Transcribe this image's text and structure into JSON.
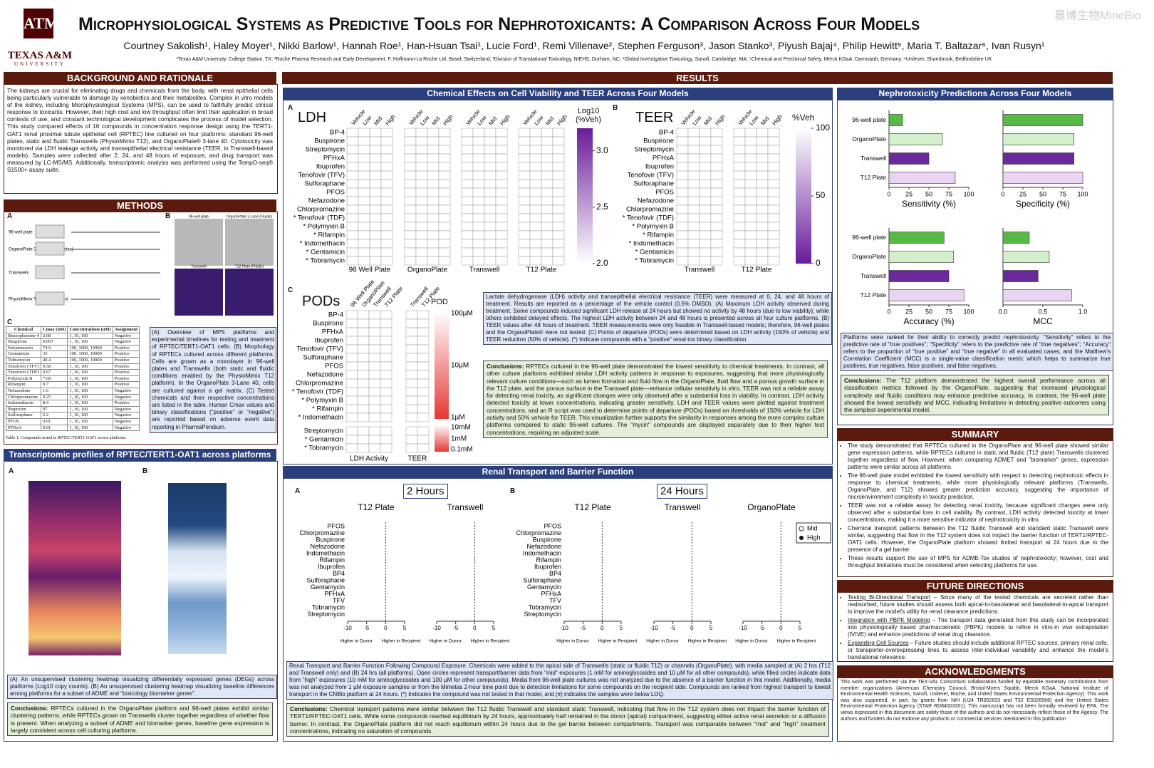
{
  "header": {
    "title": "Microphysiological Systems as Predictive Tools for Nephrotoxicants: A Comparison Across Four Models",
    "authors": "Courtney Sakolish¹, Haley Moyer¹, Nikki Barlow¹, Hannah Roe¹, Han-Hsuan Tsai¹, Lucie Ford¹, Remi Villenave², Stephen Ferguson³, Jason Stanko³, Piyush Bajaj⁴, Philip Hewitt⁵, Maria T. Baltazar⁶, Ivan Rusyn¹",
    "affiliations": "¹Texas A&M University, College Station, TX; ²Roche Pharma Research and Early Development, F. Hoffmann-La Roche Ltd, Basel, Switzerland; ³Division of Translational Toxicology, NIEHS, Durham, NC; ⁴Global Investigative Toxicology, Sanofi, Cambridge, MA; ⁵Chemical and Preclinical Safety, Merck KGaA, Darmstadt, Germany; ⁶Unilever, Sharnbrook, Bedfordshire UK",
    "logo": "TEXAS A&M",
    "logo_sub": "UNIVERSITY",
    "watermark": "暴博生物MineBio"
  },
  "background": {
    "heading": "BACKGROUND AND RATIONALE",
    "text": "The kidneys are crucial for eliminating drugs and chemicals from the body, with renal epithelial cells being particularly vulnerable to damage by xenobiotics and their metabolites. Complex in vitro models of the kidney, including Microphysiological Systems (MPS), can be used to faithfully predict clinical response to toxicants. However, their high cost and low throughput often limit their application in broad contexts of use, and constant technological development complicates the process of model selection. This study compared effects of 16 compounds in concentration response design using the TERT1-OAT1 renal proximal tubule epithelial cell (RPTEC) line cultured on four platforms: standard 96-well plates, static and fluidic Transwells (PhysioMimix T12), and OrganoPlate® 3-lane 40. Cytotoxicity was monitored via LDH leakage activity and transepithelial electrical resistance (TEER, in Transwell-based models). Samples were collected after 2, 24, and 48 hours of exposure, and drug transport was measured by LC-MS/MS. Additionally, transcriptomic analysis was performed using the TempO-seq® S1500+ assay suite."
  },
  "methods": {
    "heading": "METHODS",
    "panel_a": "A",
    "panel_b": "B",
    "panel_c": "C",
    "platforms": [
      "96-well plate",
      "OrganoPlate 3-Lane 40 (Mimetas)",
      "Transwells",
      "PhysioMimix T12 Plate (CNBio)"
    ],
    "images": [
      "96-well plate",
      "OrganoPlate 3-Lane (Fluidic)",
      "Transwell",
      "T12 Plate (Fluidic)"
    ],
    "caption": "(A) Overview of MPS platforms and experimental timelines for testing and treatment of RPTEC/TERT1-OAT1 cells. (B) Morphology of RPTECs cultured across different platforms. Cells are grown as a monolayer in 96-well plates and Transwells (both static and fluidic conditions enabled by the PhysioMimix T12 platform). In the OrganoPlate 3-Lane 40, cells are cultured against a gel matrix. (C) Tested chemicals and their respective concentrations are listed in the table. Human Cmax values and binary classifications (\"positive\" or \"negative\") are reported based on adverse event data reporting in PharmaPendium.",
    "table": {
      "columns": [
        "Chemical",
        "Cmax (uM)",
        "Concentrations (uM)",
        "Assignment"
      ],
      "rows": [
        [
          "Benzophenone-4",
          "2.08",
          "1, 10, 100",
          "Negative"
        ],
        [
          "Buspirone",
          "0.007",
          "1, 10, 100",
          "Negative"
        ],
        [
          "Streptomycin",
          "74.9",
          "100, 1000, 10000",
          "Positive"
        ],
        [
          "Gentamicin",
          "33",
          "100, 1000, 10000",
          "Positive"
        ],
        [
          "Tobramycin",
          "40.4",
          "100, 1000, 10000",
          "Positive"
        ],
        [
          "Tenofovir (TFV)",
          "0.58",
          "1, 10, 100",
          "Positive"
        ],
        [
          "Tenofovir (TDF)",
          "0.67",
          "1, 10, 100",
          "Positive"
        ],
        [
          "Polymyxin B",
          "7.68",
          "1, 10, 100",
          "Positive"
        ],
        [
          "Rifampin",
          "9.7",
          "1, 10, 100",
          "Positive"
        ],
        [
          "Nefazodone",
          "1.6",
          "1, 10, 100",
          "Negative"
        ],
        [
          "Chlorpromazine",
          "0.25",
          "1, 10, 100",
          "Negative"
        ],
        [
          "Indomethacin",
          "8.4",
          "1, 10, 100",
          "Positive"
        ],
        [
          "Ibuprofen",
          "97",
          "1, 10, 100",
          "Negative"
        ],
        [
          "Sulforaphane",
          "2.2",
          "1, 10, 100",
          "Negative"
        ],
        [
          "PFOS",
          "0.01",
          "1, 10, 100",
          "Negative"
        ],
        [
          "PFHxA",
          "0.01",
          "1, 10, 100",
          "Negative"
        ]
      ],
      "caption": "Table 1. Compounds tested in RPTEC/TERT1-OAT1 across platforms"
    }
  },
  "transcriptomics": {
    "heading": "Transcriptomic profiles of RPTEC/TERT1-OAT1 across platforms",
    "panel_a": "A",
    "panel_b": "B",
    "caption": "(A) An unsupervised clustering heatmap visualizing differentially expressed genes (DEGs) across platforms (Log10 copy counts). (B) An unsupervised clustering heatmap visualizing baseline differences among platforms for a subset of ADME and \"toxicology biomarker genes\".",
    "label": "Conclusions:",
    "conclusions": "RPTECs cultured in the OrganoPlate platform and 96-well plates exhibit similar clustering patterns, while RPTECs grown on Transwells cluster together regardless of whether flow is present. When analyzing a subset of ADME and biomarker genes, baseline gene expression is largely consistent across cell culturing platforms."
  },
  "results": {
    "heading": "RESULTS",
    "chem_heading": "Chemical Effects on Cell Viability and TEER Across Four Models",
    "panel_a": "A",
    "panel_b": "B",
    "panel_c": "C",
    "ldh": "LDH",
    "teer": "TEER",
    "pods": "PODs",
    "conditions": [
      "Vehicle",
      "Low",
      "Mid",
      "High"
    ],
    "compounds": [
      "BP-4",
      "Buspirone",
      "Streptomycin",
      "PFHxA",
      "Ibuprofen",
      "Tenofovir (TFV)",
      "Sulforaphane",
      "PFOS",
      "Nefazodone",
      "Chlorpromazine",
      "* Tenofovir (TDF)",
      "* Polymyxin B",
      "* Rifampin",
      "* Indomethacin",
      "* Gentamicin",
      "* Tobramycin"
    ],
    "ldh_platforms": [
      "96 Well Plate",
      "OrganoPlate",
      "Transwell",
      "T12 Plate"
    ],
    "teer_platforms": [
      "Transwell",
      "T12 Plate"
    ],
    "ldh_scale_title": "Log10 (%Veh)",
    "ldh_scale": [
      {
        "value": 3,
        "label": "3.0"
      },
      2.5,
      {
        "value": 2,
        "label": "2.0"
      }
    ],
    "teer_scale_title": "%Veh",
    "teer_scale": [
      100,
      50,
      0
    ],
    "pod_compounds": [
      "BP-4",
      "Buspirone",
      "PFHxA",
      "Ibuprofen",
      "Tenofovir (TFV)",
      "Sulforaphane",
      "PFOS",
      "Nefazodone",
      "Chlorpromazine",
      "* Tenofovir (TDF)",
      "* Polymyxin B",
      "* Rifampin",
      "* Indomethacin"
    ],
    "pod_compounds2": [
      "Streptomycin",
      "* Gentamicin",
      "* Tobramycin"
    ],
    "pod_cols": [
      "96 Well Plate",
      "OrganoPlate",
      "Transwell",
      "T12 Plate"
    ],
    "pod_teer_cols": [
      "Transwell",
      "T12 Plate"
    ],
    "pod_groups": [
      "LDH Activity",
      "TEER"
    ],
    "pod_scale_title": "POD",
    "pod_scale": [
      "100µM",
      "10µM",
      "1µM"
    ],
    "pod_scale2": [
      "10mM",
      "1mM",
      "0.1mM"
    ],
    "chem_caption": "Lactate dehydrogenase (LDH) activity and transepithelial electrical resistance (TEER) were measured at 0, 24, and 48 hours of treatment. Results are reported as a percentage of the vehicle control (0.5% DMSO). (A) Maximum LDH activity observed during treatment. Some compounds induced significant LDH release at 24 hours but showed no activity by 48 hours (due to low viability), while others exhibited delayed effects. The highest LDH activity between 24 and 48 hours is presented across all four culture platforms. (B) TEER values after 48 hours of treatment. TEER measurements were only feasible in Transwell-based models; therefore, 96-well plates and the OrganoPlate® were not tested. (C) Points of departure (PODs) were determined based on LDH activity (150% of vehicle) and TEER reduction (50% of vehicle). (*) Indicate compounds with a \"positive\" renal tox binary classification.",
    "label": "Conclusions:",
    "chem_conclusions": "RPTECs cultured in the 96-well plate demonstrated the lowest sensitivity to chemical treatments. In contrast, all other culture platforms exhibited similar LDH activity patterns in response to exposures, suggesting that more physiologically relevant culture conditions—such as lumen formation and fluid flow in the OrganoPlate, fluid flow and a porous growth surface in the T12 plate, and the porous surface in the Transwell plate—enhance cellular sensitivity in vitro. TEER was not a reliable assay for detecting renal toxicity, as significant changes were only observed after a substantial loss in viability. In contrast, LDH activity detected toxicity at lower concentrations, indicating greater sensitivity. LDH and TEER values were plotted against treatment concentrations, and an R script was used to determine points of departure (PODs) based on thresholds of 150% vehicle for LDH activity and 50% vehicle for TEER. This visualization further supports the similarity in responses among the more complex culture platforms compared to static 96-well cultures. The \"mycin\" compounds are displayed separately due to their higher test concentrations, requiring an adjusted scale.",
    "transport_heading": "Renal Transport and Barrier Function",
    "time_a": "2 Hours",
    "time_b": "24 Hours",
    "panels_a": [
      "T12 Plate",
      "Transwell"
    ],
    "panels_b": [
      "T12 Plate",
      "Transwell",
      "OrganoPlate"
    ],
    "transport_compounds": [
      "PFOS",
      "Chlorpromazine",
      "Buspirone",
      "Nefazodone",
      "Indomethacin",
      "Rifampin",
      "Ibuprofen",
      "BP4",
      "Sulforaphane",
      "Gentamycin",
      "PFHxA",
      "TFV",
      "Tobramycin",
      "Streptomycin"
    ],
    "transport_ticks": [
      -10,
      -5,
      0,
      5
    ],
    "axis_left": "Higher in Donor",
    "axis_right": "Higher in Recipient",
    "legend": [
      "Mid",
      "High"
    ],
    "transport_caption": "Renal Transport and Barrier Function Following Compound Exposure. Chemicals were added to the apical side of Transwells (static or fluidic T12) or channels (OrganoPlate), with media sampled at (A) 2 hrs (T12 and Transwell only) and (B) 24 hrs (all platforms). Open circles represent transport/barrier data from \"mid\" exposures (1 mM for aminoglycosides and 10 µM for all other compounds), while filled circles indicate data from \"high\" exposures (10 mM for aminoglycosides and 100 µM for other compounds). Media from 96-well plate cultures was not analyzed due to the absence of a barrier function in this model. Additionally, media was not analyzed from 1 µM exposure samples or from the Mimetas 2-hour time point due to detection limitations for some compounds on the recipient side. Compounds are ranked from highest transport to lowest transport in the CNBio platform at 24 hours. (*) Indicates the compound was not tested in that model, and (#) indicates the samples were below LOQ.",
    "transport_conclusions": "Chemical transport patterns were similar between the T12 fluidic Transwell and standard static Transwell, indicating that flow in the T12 system does not impact the barrier function of TERT1/RPTEC-OAT1 cells. While some compounds reached equilibrium by 24 hours, approximately half remained in the donor (apical) compartment, suggesting either active renal secretion or a diffusion barrier. In contrast, the OrganoPlate platform did not reach equilibrium within 24 hours due to the gel barrier between compartments. Transport was comparable between \"mid\" and \"high\" treatment concentrations, indicating no saturation of compounds."
  },
  "nephro": {
    "heading": "Nephrotoxicity Predictions Across Four Models",
    "caption": "Platforms were ranked for their ability to correctly predict nephrotoxicity. \"Sensitivity\" refers to the predictive rate of \"true positives\"; \"Specificity\" refers to the predictive rate of \"true negatives\"; \"Accuracy\" refers to the proportion of \"true positive\" and \"true negative\" in all evaluated cases; and the Matthew's Correlation Coefficient (MCC) is a single-value classification metric which helps to summarize true positives, true negatives, false positives, and false negatives.",
    "label": "Conclusions:",
    "conclusions": "The T12 platform demonstrated the highest overall performance across all classification metrics followed by the OrganoPlate, suggesting that increased physiological complexity and fluidic conditions may enhance predictive accuracy. In contrast, the 96-well plate showed the lowest sensitivity and MCC, indicating limitations in detecting positive outcomes using the simplest experimental model."
  },
  "chart_data": [
    {
      "type": "hbar",
      "xlabel": "Sensitivity (%)",
      "categories": [
        "96-well plate",
        "OrganoPlate",
        "Transwell",
        "T12 Plate"
      ],
      "colors": [
        "#58b947",
        "#d3f0cc",
        "#6a2a9b",
        "#e9d4f3"
      ],
      "values": [
        17,
        67,
        50,
        83
      ],
      "xlim": [
        0,
        100
      ],
      "xticks": [
        0,
        25,
        50,
        75,
        100
      ]
    },
    {
      "type": "hbar",
      "xlabel": "Specificity (%)",
      "categories": [
        "96-well plate",
        "OrganoPlate",
        "Transwell",
        "T12 Plate"
      ],
      "colors": [
        "#58b947",
        "#d3f0cc",
        "#6a2a9b",
        "#e9d4f3"
      ],
      "values": [
        100,
        89,
        89,
        100
      ],
      "xlim": [
        0,
        100
      ],
      "xticks": [
        0,
        25,
        50,
        75,
        100
      ]
    },
    {
      "type": "hbar",
      "xlabel": "Accuracy (%)",
      "categories": [
        "96-well plate",
        "OrganoPlate",
        "Transwell",
        "T12 Plate"
      ],
      "colors": [
        "#58b947",
        "#d3f0cc",
        "#6a2a9b",
        "#e9d4f3"
      ],
      "values": [
        69,
        81,
        75,
        94
      ],
      "xlim": [
        0,
        100
      ],
      "xticks": [
        0,
        25,
        50,
        75,
        100
      ]
    },
    {
      "type": "hbar",
      "xlabel": "MCC",
      "categories": [
        "96-well plate",
        "OrganoPlate",
        "Transwell",
        "T12 Plate"
      ],
      "colors": [
        "#58b947",
        "#d3f0cc",
        "#6a2a9b",
        "#e9d4f3"
      ],
      "values": [
        0.33,
        0.58,
        0.44,
        0.86
      ],
      "xlim": [
        0,
        1
      ],
      "xticks": [
        {
          "value": 0,
          "label": "0.0"
        },
        0.5,
        {
          "value": 1,
          "label": "1.0"
        }
      ]
    }
  ],
  "summary": {
    "heading": "SUMMARY",
    "items": [
      "The study demonstrated that RPTECs cultured in the OrganoPlate and 96-well plate showed similar gene expression patterns, while RPTECs cultured in static and fluidic (T12 plate) Transwells clustered together regardless of flow. However, when comparing ADMET and \"biomarker\" genes, expression patterns were similar across all platforms.",
      "The 96-well plate model exhibited the lowest sensitivity with respect to detecting nephrotoxic effects in response to chemical treatments, while more physiologically relevant platforms (Transwells, OrganoPlate, and T12) showed greater prediction accuracy, suggesting the importance of microenvironment complexity in toxicity prediction.",
      "TEER was not a reliable assay for detecting renal toxicity, because significant changes were only observed after a substantial loss in cell viability. By contrast, LDH activity detected toxicity at lower concentrations, making it a more sensitive indicator of nephrotoxicity in vitro.",
      "Chemical transport patterns between the T12 fluidic Transwell and standard static Transwell were similar, suggesting that flow in the T12 system does not impact the barrier function of TERT1/RPTEC-OAT1 cells. However, the OrganoPlate platform showed limited transport at 24 hours due to the presence of a gel barrier.",
      "These results support the use of MPS for ADME-Tox studies of nephrotoxicity; however, cost and throughput limitations must be considered when selecting platforms for use."
    ]
  },
  "future": {
    "heading": "FUTURE DIRECTIONS",
    "items": [
      {
        "title": "Testing Bi-Directional Transport",
        "text": " – Since many of the tested chemicals are secreted rather than reabsorbed, future studies should assess both apical-to-basolateral and basolateral-to-apical transport to improve the model's utility for renal clearance predictions."
      },
      {
        "title": "Integration with PBPK Modeling",
        "text": " – The transport data generated from this study can be incorporated into physiologically based pharmacokinetic (PBPK) models to refine in vitro-in vivo extrapolation (IVIVE) and enhance predictions of renal drug clearance."
      },
      {
        "title": "Expanding Cell Sources",
        "text": " – Future studies should include additional RPTEC sources, primary renal cells, or transporter-overexpressing lines to assess inter-individual variability and enhance the model's translational relevance."
      }
    ]
  },
  "acknowledgments": {
    "heading": "ACKNOWLEDGMENTS",
    "text": "This work was performed via the TEX-VAL Consortium collaboration funded by equitable monetary contributions from member organizations (American Chemistry Council, Bristol-Myers Squibb, Merck KGaA, National Institute of Environmental Health Sciences, Sanofi, Unilever, Roche, and United States Environmental Protection Agency). This work was also supported, in part, by grants from NIH (U24 TR002633 and T32 ES026568) and the United States Environmental Protection Agency (STAR RD84003201). This manuscript has not been formally reviewed by EPA. The views expressed in this document are solely those of the authors and do not necessarily reflect those of the Agency. The authors and funders do not endorse any products or commercial services mentioned in this publication"
  }
}
